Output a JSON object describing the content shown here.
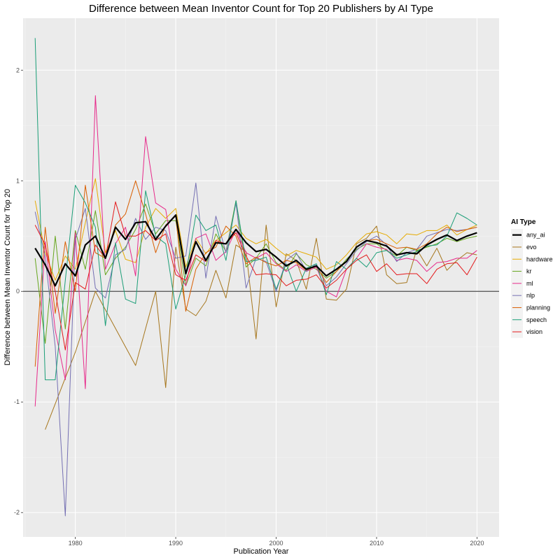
{
  "chart_data": {
    "type": "line",
    "title": "Difference between Mean Inventor Count for Top 20 Publishers by AI Type",
    "xlabel": "Publication Year",
    "ylabel": "Difference between Mean Inventor Count for Top 20",
    "xlim": [
      1974.8,
      2022.2
    ],
    "ylim": [
      -2.22,
      2.47
    ],
    "x_ticks": [
      1980,
      1990,
      2000,
      2010,
      2020
    ],
    "y_ticks": [
      -2,
      -1,
      0,
      1,
      2
    ],
    "x_tick_labels": [
      "1980",
      "1990",
      "2000",
      "2010",
      "2020"
    ],
    "y_tick_labels": [
      "-2",
      "-1",
      "0",
      "1",
      "2"
    ],
    "hline": 0,
    "grid": true,
    "legend": {
      "title": "AI Type",
      "position": "right"
    },
    "series": [
      {
        "name": "any_ai",
        "color": "#000000",
        "width": 2.2,
        "x": [
          1976,
          1977,
          1978,
          1979,
          1980,
          1981,
          1982,
          1983,
          1984,
          1985,
          1986,
          1987,
          1988,
          1989,
          1990,
          1991,
          1992,
          1993,
          1994,
          1995,
          1996,
          1997,
          1998,
          1999,
          2000,
          2001,
          2002,
          2003,
          2004,
          2005,
          2006,
          2007,
          2008,
          2009,
          2010,
          2011,
          2012,
          2013,
          2014,
          2015,
          2016,
          2017,
          2018,
          2019,
          2020
        ],
        "y": [
          0.39,
          0.24,
          0.05,
          0.25,
          0.14,
          0.42,
          0.5,
          0.3,
          0.58,
          0.47,
          0.62,
          0.63,
          0.47,
          0.59,
          0.69,
          0.16,
          0.45,
          0.28,
          0.44,
          0.43,
          0.56,
          0.44,
          0.36,
          0.38,
          0.31,
          0.23,
          0.28,
          0.2,
          0.23,
          0.14,
          0.2,
          0.27,
          0.4,
          0.46,
          0.44,
          0.41,
          0.33,
          0.35,
          0.34,
          0.42,
          0.47,
          0.51,
          0.46,
          0.5,
          0.53
        ]
      },
      {
        "name": "evo",
        "color": "#A6761D",
        "width": 1,
        "x": [
          1977,
          1980,
          1982,
          1986,
          1988,
          1989,
          1990,
          1991,
          1992,
          1993,
          1994,
          1995,
          1996,
          1997,
          1998,
          1999,
          2000,
          2001,
          2002,
          2003,
          2004,
          2005,
          2006,
          2007,
          2008,
          2009,
          2010,
          2011,
          2012,
          2013,
          2014,
          2015,
          2016,
          2017,
          2018,
          2019,
          2020
        ],
        "y": [
          -1.25,
          -0.55,
          0.0,
          -0.67,
          0.0,
          -0.87,
          0.4,
          -0.16,
          -0.22,
          -0.09,
          0.19,
          -0.06,
          0.42,
          0.36,
          -0.43,
          0.6,
          -0.14,
          0.34,
          0.28,
          0.02,
          0.48,
          -0.07,
          -0.08,
          0.02,
          0.43,
          0.48,
          0.59,
          0.15,
          0.07,
          0.08,
          0.38,
          0.23,
          0.39,
          0.19,
          0.28,
          0.35,
          0.33
        ]
      },
      {
        "name": "hardware",
        "color": "#E6AB02",
        "width": 1,
        "x": [
          1976,
          1977,
          1978,
          1979,
          1980,
          1981,
          1982,
          1983,
          1984,
          1985,
          1986,
          1987,
          1988,
          1989,
          1990,
          1991,
          1992,
          1993,
          1994,
          1995,
          1996,
          1997,
          1998,
          1999,
          2000,
          2001,
          2002,
          2003,
          2004,
          2005,
          2006,
          2007,
          2008,
          2009,
          2010,
          2011,
          2012,
          2013,
          2014,
          2015,
          2016,
          2017,
          2018,
          2019,
          2020
        ],
        "y": [
          0.82,
          0.35,
          0.1,
          0.32,
          0.2,
          0.62,
          1.02,
          0.35,
          0.55,
          0.29,
          0.26,
          0.58,
          0.75,
          0.66,
          0.75,
          0.22,
          0.48,
          0.34,
          0.46,
          0.53,
          0.6,
          0.48,
          0.43,
          0.47,
          0.39,
          0.32,
          0.37,
          0.34,
          0.31,
          0.2,
          0.24,
          0.33,
          0.44,
          0.52,
          0.54,
          0.51,
          0.43,
          0.52,
          0.51,
          0.55,
          0.55,
          0.6,
          0.51,
          0.56,
          0.6
        ]
      },
      {
        "name": "kr",
        "color": "#66A61E",
        "width": 1,
        "x": [
          1976,
          1977,
          1978,
          1979,
          1980,
          1981,
          1982,
          1983,
          1984,
          1985,
          1986,
          1987,
          1988,
          1989,
          1990,
          1991,
          1992,
          1993,
          1994,
          1995,
          1996,
          1997,
          1998,
          1999,
          2000,
          2001,
          2002,
          2003,
          2004,
          2005,
          2006,
          2007,
          2008,
          2009,
          2010,
          2011,
          2012,
          2013,
          2014,
          2015,
          2016,
          2017,
          2018,
          2019,
          2020
        ],
        "y": [
          0.3,
          -0.47,
          0.5,
          -0.34,
          0.55,
          0.2,
          0.73,
          0.15,
          0.3,
          0.4,
          0.56,
          0.79,
          0.52,
          0.64,
          0.64,
          0.05,
          0.3,
          0.23,
          0.52,
          0.36,
          0.82,
          0.22,
          0.3,
          0.43,
          0.26,
          0.19,
          0.34,
          0.24,
          0.2,
          0.12,
          0.18,
          0.29,
          0.38,
          0.43,
          0.43,
          0.37,
          0.32,
          0.4,
          0.37,
          0.4,
          0.43,
          0.48,
          0.45,
          0.48,
          0.5
        ]
      },
      {
        "name": "ml",
        "color": "#E7298A",
        "width": 1,
        "x": [
          1976,
          1977,
          1978,
          1979,
          1980,
          1981,
          1982,
          1983,
          1984,
          1985,
          1986,
          1987,
          1988,
          1989,
          1990,
          1991,
          1992,
          1993,
          1994,
          1995,
          1996,
          1997,
          1998,
          1999,
          2000,
          2001,
          2002,
          2003,
          2004,
          2005,
          2006,
          2007,
          2008,
          2009,
          2010,
          2011,
          2012,
          2013,
          2014,
          2015,
          2016,
          2017,
          2018,
          2019,
          2020
        ],
        "y": [
          -1.04,
          0.45,
          -0.35,
          -0.8,
          0.53,
          -0.88,
          1.77,
          0.2,
          0.43,
          0.58,
          0.14,
          1.4,
          0.8,
          0.74,
          0.2,
          0.05,
          0.48,
          0.52,
          0.28,
          0.36,
          0.56,
          0.35,
          0.3,
          0.35,
          0.25,
          0.18,
          0.24,
          0.18,
          0.22,
          0.0,
          -0.05,
          0.2,
          0.3,
          0.43,
          0.4,
          0.38,
          0.28,
          0.3,
          0.28,
          0.18,
          0.26,
          0.27,
          0.3,
          0.3,
          0.37
        ]
      },
      {
        "name": "nlp",
        "color": "#7570B3",
        "width": 1,
        "x": [
          1976,
          1977,
          1978,
          1979,
          1980,
          1981,
          1982,
          1983,
          1984,
          1985,
          1986,
          1987,
          1988,
          1989,
          1990,
          1991,
          1992,
          1993,
          1994,
          1995,
          1996,
          1997,
          1998,
          1999,
          2000,
          2001,
          2002,
          2003,
          2004,
          2005,
          2006,
          2007,
          2008,
          2009,
          2010,
          2011,
          2012,
          2013,
          2014,
          2015,
          2016,
          2017,
          2018,
          2019,
          2020
        ],
        "y": [
          0.72,
          0.31,
          -0.5,
          -2.03,
          0.47,
          0.75,
          0.03,
          -0.06,
          0.33,
          0.38,
          0.66,
          0.47,
          0.58,
          0.55,
          0.3,
          0.32,
          0.98,
          0.12,
          0.68,
          0.35,
          0.8,
          0.03,
          0.3,
          0.27,
          0.0,
          0.28,
          0.35,
          0.18,
          0.25,
          0.05,
          0.13,
          0.25,
          0.37,
          0.45,
          0.5,
          0.42,
          0.27,
          0.35,
          0.38,
          0.5,
          0.53,
          0.56,
          0.55,
          0.56,
          0.58
        ]
      },
      {
        "name": "planning",
        "color": "#D95F02",
        "width": 1,
        "x": [
          1976,
          1977,
          1978,
          1979,
          1980,
          1981,
          1982,
          1983,
          1984,
          1985,
          1986,
          1987,
          1988,
          1989,
          1990,
          1991,
          1992,
          1993,
          1994,
          1995,
          1996,
          1997,
          1998,
          1999,
          2000,
          2001,
          2002,
          2003,
          2004,
          2005,
          2006,
          2007,
          2008,
          2009,
          2010,
          2011,
          2012,
          2013,
          2014,
          2015,
          2016,
          2017,
          2018,
          2019,
          2020
        ],
        "y": [
          -0.68,
          0.58,
          -0.2,
          0.45,
          0.0,
          0.96,
          0.35,
          0.3,
          0.6,
          0.7,
          1.0,
          0.7,
          0.35,
          0.6,
          0.68,
          -0.18,
          0.2,
          0.35,
          0.4,
          0.59,
          0.5,
          0.25,
          0.31,
          0.26,
          0.23,
          0.28,
          0.26,
          0.19,
          0.23,
          0.08,
          0.18,
          0.27,
          0.4,
          0.46,
          0.47,
          0.43,
          0.39,
          0.4,
          0.38,
          0.43,
          0.52,
          0.58,
          0.54,
          0.56,
          0.58
        ]
      },
      {
        "name": "speech",
        "color": "#1B9E77",
        "width": 1,
        "x": [
          1976,
          1977,
          1978,
          1979,
          1980,
          1981,
          1982,
          1983,
          1984,
          1985,
          1986,
          1987,
          1988,
          1989,
          1990,
          1991,
          1992,
          1993,
          1994,
          1995,
          1996,
          1997,
          1998,
          1999,
          2000,
          2001,
          2002,
          2003,
          2004,
          2005,
          2006,
          2007,
          2008,
          2009,
          2010,
          2011,
          2012,
          2013,
          2014,
          2015,
          2016,
          2017,
          2018,
          2019,
          2020
        ],
        "y": [
          2.29,
          -0.8,
          -0.8,
          0.1,
          0.96,
          0.8,
          0.58,
          -0.31,
          0.44,
          -0.07,
          -0.11,
          0.91,
          0.5,
          0.43,
          -0.16,
          0.15,
          0.69,
          0.55,
          0.6,
          0.28,
          0.82,
          0.27,
          0.28,
          0.31,
          0.02,
          0.25,
          0.0,
          0.21,
          0.25,
          -0.03,
          0.27,
          0.2,
          0.3,
          0.22,
          0.35,
          0.37,
          0.3,
          0.33,
          0.36,
          0.41,
          0.42,
          0.5,
          0.71,
          0.66,
          0.6
        ]
      },
      {
        "name": "vision",
        "color": "#E41A1C",
        "width": 1,
        "x": [
          1976,
          1977,
          1978,
          1979,
          1980,
          1981,
          1982,
          1983,
          1984,
          1985,
          1986,
          1987,
          1988,
          1989,
          1990,
          1991,
          1992,
          1993,
          1994,
          1995,
          1996,
          1997,
          1998,
          1999,
          2000,
          2001,
          2002,
          2003,
          2004,
          2005,
          2006,
          2007,
          2008,
          2009,
          2010,
          2011,
          2012,
          2013,
          2014,
          2015,
          2016,
          2017,
          2018,
          2019,
          2020
        ],
        "y": [
          0.6,
          0.42,
          0.0,
          -0.53,
          0.08,
          0.02,
          0.42,
          0.3,
          0.81,
          0.5,
          0.5,
          0.55,
          0.46,
          0.52,
          0.15,
          0.1,
          0.33,
          0.27,
          0.46,
          0.43,
          0.53,
          0.32,
          0.15,
          0.16,
          0.15,
          0.05,
          0.1,
          0.11,
          0.15,
          0.03,
          0.1,
          0.2,
          0.28,
          0.33,
          0.18,
          0.25,
          0.15,
          0.16,
          0.16,
          0.07,
          0.2,
          0.25,
          0.26,
          0.15,
          0.31
        ]
      }
    ]
  }
}
